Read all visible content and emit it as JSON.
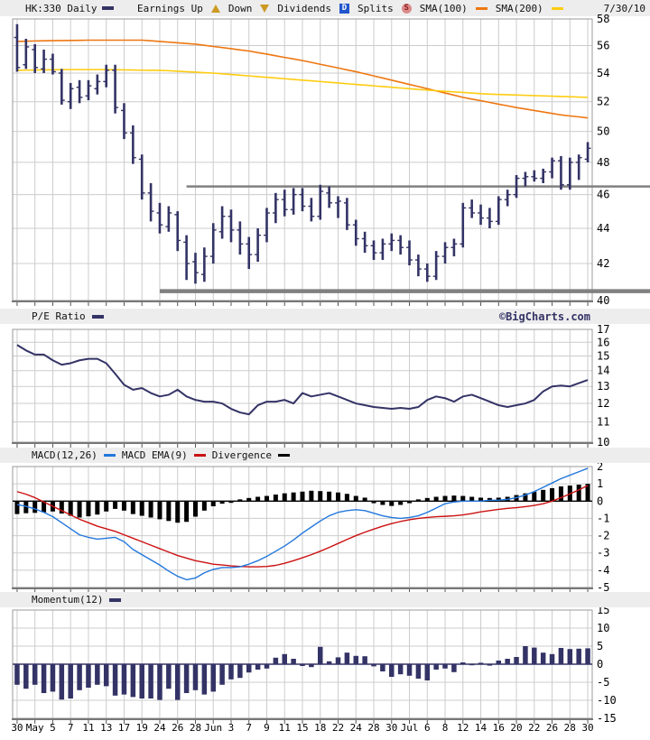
{
  "header": {
    "symbol": "HK:330 Daily",
    "date": "7/30/10",
    "legend": {
      "earnings_up": "Earnings Up",
      "down": "Down",
      "dividends": "Dividends",
      "dividends_icon_letter": "D",
      "splits": "Splits",
      "splits_icon_letter": "S",
      "sma100": "SMA(100)",
      "sma200": "SMA(200)"
    }
  },
  "panels": {
    "pe": {
      "label": "P/E Ratio",
      "branding": "©BigCharts.com"
    },
    "macd": {
      "macd_label": "MACD(12,26)",
      "ema_label": "MACD EMA(9)",
      "divergence_label": "Divergence"
    },
    "momentum": {
      "label": "Momentum(12)"
    }
  },
  "colors": {
    "navy": "#333366",
    "sma100_orange": "#ee7711",
    "sma200_yellow": "#ffcc11",
    "macd_blue": "#2277dd",
    "macd_red": "#cc1111",
    "divergence_black": "#000000",
    "grid": "#cccccc",
    "trendline_gray": "#808080",
    "panel_bar_bg": "#ededed"
  },
  "chart_data": [
    {
      "id": "price",
      "type": "ohlc-bar",
      "title": "HK:330 Daily",
      "scale": "log",
      "ylim": [
        40,
        58
      ],
      "yticks": [
        58,
        56,
        54,
        52,
        50,
        48,
        46,
        44,
        42,
        40
      ],
      "x_labels": [
        "30",
        "May",
        "5",
        "7",
        "11",
        "13",
        "17",
        "19",
        "24",
        "26",
        "28",
        "Jun",
        "3",
        "7",
        "9",
        "11",
        "15",
        "18",
        "22",
        "24",
        "28",
        "30",
        "Jul",
        "6",
        "8",
        "12",
        "14",
        "16",
        "20",
        "22",
        "26",
        "28",
        "30"
      ],
      "bar_color": "#333366",
      "ohlc": [
        [
          56.6,
          57.6,
          54.1,
          54.4
        ],
        [
          54.6,
          56.5,
          54.3,
          55.9
        ],
        [
          55.7,
          56.1,
          54.0,
          54.4
        ],
        [
          54.3,
          55.7,
          54.0,
          55.0
        ],
        [
          55.0,
          55.4,
          53.9,
          54.1
        ],
        [
          54.0,
          54.3,
          51.8,
          52.1
        ],
        [
          52.0,
          53.3,
          51.5,
          52.9
        ],
        [
          53.0,
          53.5,
          51.9,
          52.3
        ],
        [
          52.4,
          53.5,
          52.1,
          53.1
        ],
        [
          52.9,
          53.9,
          52.5,
          53.4
        ],
        [
          53.4,
          54.6,
          53.0,
          54.2
        ],
        [
          54.2,
          54.6,
          51.2,
          51.6
        ],
        [
          51.4,
          51.9,
          49.5,
          49.9
        ],
        [
          49.9,
          50.4,
          47.9,
          48.3
        ],
        [
          48.2,
          48.5,
          45.7,
          46.1
        ],
        [
          46.1,
          46.7,
          44.4,
          45.0
        ],
        [
          44.9,
          45.5,
          43.7,
          44.2
        ],
        [
          44.1,
          45.3,
          43.8,
          44.9
        ],
        [
          44.8,
          45.0,
          42.7,
          43.3
        ],
        [
          43.2,
          43.6,
          41.1,
          42.0
        ],
        [
          42.1,
          42.6,
          40.9,
          41.5
        ],
        [
          41.4,
          42.9,
          41.0,
          42.4
        ],
        [
          42.4,
          44.3,
          42.0,
          43.9
        ],
        [
          43.8,
          45.3,
          43.4,
          44.7
        ],
        [
          44.7,
          45.1,
          43.2,
          43.9
        ],
        [
          43.9,
          44.4,
          42.5,
          43.1
        ],
        [
          43.1,
          43.5,
          41.7,
          42.5
        ],
        [
          42.5,
          44.0,
          42.1,
          43.6
        ],
        [
          43.6,
          45.2,
          43.2,
          44.9
        ],
        [
          44.9,
          46.1,
          44.3,
          45.7
        ],
        [
          45.7,
          46.3,
          44.7,
          45.1
        ],
        [
          45.1,
          46.4,
          44.8,
          46.0
        ],
        [
          46.0,
          46.4,
          45.0,
          45.3
        ],
        [
          45.3,
          45.8,
          44.4,
          44.7
        ],
        [
          44.7,
          46.6,
          44.5,
          46.2
        ],
        [
          46.1,
          46.5,
          45.2,
          45.5
        ],
        [
          45.5,
          45.9,
          44.6,
          45.6
        ],
        [
          45.5,
          45.8,
          43.9,
          44.2
        ],
        [
          44.2,
          44.5,
          43.0,
          43.4
        ],
        [
          43.4,
          43.8,
          42.6,
          43.0
        ],
        [
          43.0,
          43.3,
          42.2,
          42.6
        ],
        [
          42.6,
          43.4,
          42.2,
          43.1
        ],
        [
          43.1,
          43.7,
          42.7,
          43.3
        ],
        [
          43.3,
          43.6,
          42.5,
          42.9
        ],
        [
          42.9,
          43.3,
          41.9,
          42.2
        ],
        [
          42.2,
          42.5,
          41.3,
          41.7
        ],
        [
          41.7,
          42.0,
          41.0,
          41.3
        ],
        [
          41.3,
          42.7,
          41.1,
          42.4
        ],
        [
          42.4,
          43.2,
          42.0,
          42.9
        ],
        [
          42.9,
          43.4,
          42.4,
          43.1
        ],
        [
          43.1,
          45.5,
          42.9,
          45.2
        ],
        [
          45.2,
          45.7,
          44.6,
          44.9
        ],
        [
          44.9,
          45.4,
          44.2,
          44.6
        ],
        [
          44.6,
          45.2,
          44.0,
          44.4
        ],
        [
          44.4,
          45.9,
          44.2,
          45.7
        ],
        [
          45.7,
          46.3,
          45.3,
          46.0
        ],
        [
          46.0,
          47.2,
          45.8,
          47.0
        ],
        [
          47.0,
          47.4,
          46.5,
          47.1
        ],
        [
          47.1,
          47.5,
          46.8,
          47.0
        ],
        [
          47.0,
          47.6,
          46.7,
          47.4
        ],
        [
          47.4,
          48.3,
          47.0,
          48.1
        ],
        [
          48.1,
          48.4,
          46.3,
          46.6
        ],
        [
          46.6,
          48.3,
          46.3,
          48.0
        ],
        [
          48.0,
          48.5,
          46.9,
          48.3
        ],
        [
          48.2,
          49.3,
          48.0,
          48.9
        ]
      ],
      "overlays": [
        {
          "name": "SMA(100)",
          "color": "#ee7711",
          "values": [
            56.3,
            56.32,
            56.34,
            56.35,
            56.36,
            56.37,
            56.38,
            56.39,
            56.4,
            56.4,
            56.4,
            56.4,
            56.4,
            56.4,
            56.4,
            56.35,
            56.3,
            56.25,
            56.2,
            56.15,
            56.1,
            56.02,
            55.93,
            55.85,
            55.77,
            55.68,
            55.6,
            55.48,
            55.37,
            55.25,
            55.13,
            55.02,
            54.9,
            54.77,
            54.63,
            54.5,
            54.37,
            54.23,
            54.1,
            53.95,
            53.8,
            53.65,
            53.5,
            53.35,
            53.2,
            53.05,
            52.9,
            52.75,
            52.6,
            52.45,
            52.3,
            52.18,
            52.07,
            51.95,
            51.83,
            51.72,
            51.6,
            51.5,
            51.4,
            51.3,
            51.2,
            51.1,
            51.03,
            50.97,
            50.9
          ]
        },
        {
          "name": "SMA(200)",
          "color": "#ffcc11",
          "values": [
            54.2,
            54.21,
            54.22,
            54.23,
            54.24,
            54.25,
            54.25,
            54.25,
            54.25,
            54.25,
            54.25,
            54.24,
            54.23,
            54.22,
            54.21,
            54.2,
            54.2,
            54.17,
            54.13,
            54.1,
            54.07,
            54.03,
            54.0,
            53.95,
            53.9,
            53.85,
            53.8,
            53.75,
            53.7,
            53.65,
            53.6,
            53.55,
            53.5,
            53.45,
            53.4,
            53.35,
            53.3,
            53.25,
            53.2,
            53.15,
            53.1,
            53.05,
            53.0,
            52.95,
            52.9,
            52.85,
            52.8,
            52.76,
            52.72,
            52.68,
            52.64,
            52.6,
            52.55,
            52.52,
            52.5,
            52.48,
            52.46,
            52.44,
            52.42,
            52.4,
            52.38,
            52.36,
            52.34,
            52.32,
            52.3
          ]
        }
      ],
      "trendlines": [
        {
          "name": "resistance",
          "value": 46.5,
          "from_index": 19,
          "color": "#808080",
          "stroke_width": 2.5
        },
        {
          "name": "support",
          "value": 40.5,
          "from_index": 16,
          "color": "#808080",
          "stroke_width": 4.5
        }
      ]
    },
    {
      "id": "pe",
      "type": "line",
      "title": "P/E Ratio",
      "scale": "log",
      "ylim": [
        10,
        17
      ],
      "yticks": [
        17,
        16,
        15,
        14,
        13,
        12,
        11,
        10
      ],
      "line_color": "#333366",
      "values": [
        15.8,
        15.4,
        15.1,
        15.1,
        14.7,
        14.4,
        14.5,
        14.7,
        14.8,
        14.8,
        14.5,
        13.8,
        13.1,
        12.8,
        12.9,
        12.6,
        12.4,
        12.5,
        12.8,
        12.4,
        12.2,
        12.1,
        12.1,
        12.0,
        11.7,
        11.5,
        11.4,
        11.9,
        12.1,
        12.1,
        12.2,
        12.0,
        12.6,
        12.4,
        12.5,
        12.6,
        12.4,
        12.2,
        12.0,
        11.9,
        11.8,
        11.75,
        11.7,
        11.75,
        11.7,
        11.8,
        12.2,
        12.4,
        12.3,
        12.1,
        12.4,
        12.5,
        12.3,
        12.1,
        11.9,
        11.8,
        11.9,
        12.0,
        12.2,
        12.7,
        13.0,
        13.05,
        13.0,
        13.2,
        13.4
      ]
    },
    {
      "id": "macd",
      "type": "macd",
      "title": "MACD(12,26)",
      "scale": "linear",
      "ylim": [
        -5,
        2
      ],
      "yticks": [
        2,
        1,
        0,
        -1,
        -2,
        -3,
        -4,
        -5
      ],
      "zero_line_color": "#000000",
      "series": [
        {
          "name": "Divergence",
          "style": "histogram",
          "color": "#000000",
          "values": [
            -0.75,
            -0.7,
            -0.68,
            -0.65,
            -0.6,
            -0.72,
            -0.85,
            -0.95,
            -0.88,
            -0.78,
            -0.6,
            -0.45,
            -0.55,
            -0.75,
            -0.85,
            -0.95,
            -1.05,
            -1.15,
            -1.25,
            -1.2,
            -0.9,
            -0.55,
            -0.3,
            -0.15,
            -0.1,
            0.1,
            0.18,
            0.25,
            0.3,
            0.38,
            0.45,
            0.5,
            0.55,
            0.6,
            0.58,
            0.55,
            0.5,
            0.42,
            0.3,
            0.2,
            -0.12,
            -0.22,
            -0.28,
            -0.22,
            -0.12,
            0.1,
            0.18,
            0.25,
            0.3,
            0.32,
            0.3,
            0.25,
            0.2,
            0.18,
            0.2,
            0.25,
            0.35,
            0.45,
            0.55,
            0.65,
            0.75,
            0.85,
            0.9,
            0.95,
            1.0
          ]
        },
        {
          "name": "MACD EMA(9)",
          "style": "line",
          "color": "#cc1111",
          "values": [
            0.55,
            0.4,
            0.2,
            -0.05,
            -0.3,
            -0.55,
            -0.8,
            -1.05,
            -1.25,
            -1.45,
            -1.6,
            -1.75,
            -1.95,
            -2.15,
            -2.35,
            -2.55,
            -2.75,
            -2.95,
            -3.15,
            -3.3,
            -3.45,
            -3.55,
            -3.65,
            -3.7,
            -3.75,
            -3.78,
            -3.8,
            -3.8,
            -3.78,
            -3.72,
            -3.6,
            -3.45,
            -3.28,
            -3.1,
            -2.9,
            -2.68,
            -2.45,
            -2.22,
            -2.0,
            -1.8,
            -1.62,
            -1.45,
            -1.3,
            -1.18,
            -1.08,
            -1.0,
            -0.95,
            -0.9,
            -0.88,
            -0.85,
            -0.8,
            -0.72,
            -0.62,
            -0.55,
            -0.48,
            -0.42,
            -0.38,
            -0.32,
            -0.25,
            -0.15,
            0.0,
            0.2,
            0.42,
            0.65,
            0.9
          ]
        },
        {
          "name": "MACD(12,26)",
          "style": "line",
          "color": "#2277dd",
          "values": [
            -0.2,
            -0.3,
            -0.45,
            -0.65,
            -0.9,
            -1.25,
            -1.6,
            -1.95,
            -2.1,
            -2.2,
            -2.15,
            -2.1,
            -2.35,
            -2.8,
            -3.1,
            -3.4,
            -3.7,
            -4.05,
            -4.35,
            -4.55,
            -4.45,
            -4.15,
            -3.95,
            -3.85,
            -3.85,
            -3.8,
            -3.65,
            -3.45,
            -3.2,
            -2.9,
            -2.6,
            -2.25,
            -1.85,
            -1.5,
            -1.15,
            -0.85,
            -0.65,
            -0.55,
            -0.5,
            -0.55,
            -0.7,
            -0.85,
            -0.95,
            -1.0,
            -0.95,
            -0.85,
            -0.65,
            -0.4,
            -0.15,
            -0.05,
            0.0,
            0.0,
            0.0,
            0.05,
            0.05,
            0.1,
            0.2,
            0.35,
            0.55,
            0.8,
            1.05,
            1.3,
            1.5,
            1.7,
            1.9
          ]
        }
      ]
    },
    {
      "id": "momentum",
      "type": "bar",
      "title": "Momentum(12)",
      "scale": "linear",
      "ylim": [
        -15,
        15
      ],
      "yticks": [
        15,
        10,
        5,
        0,
        -5,
        -10,
        -15
      ],
      "zero_line_color": "#333366",
      "bar_color": "#333366",
      "values": [
        -5.7,
        -6.8,
        -5.7,
        -8.0,
        -7.6,
        -9.8,
        -9.5,
        -7.2,
        -6.5,
        -5.7,
        -6.1,
        -8.7,
        -8.4,
        -9.1,
        -9.5,
        -9.5,
        -9.9,
        -6.8,
        -9.9,
        -8.0,
        -7.2,
        -8.4,
        -7.6,
        -5.7,
        -4.2,
        -3.8,
        -2.3,
        -1.5,
        -1.2,
        1.8,
        2.8,
        1.5,
        -0.5,
        -0.8,
        4.8,
        0.8,
        1.9,
        3.2,
        2.3,
        2.2,
        -0.6,
        -2.0,
        -3.5,
        -2.8,
        -3.2,
        -4.0,
        -4.5,
        -1.5,
        -1.2,
        -2.2,
        0.5,
        -0.3,
        0.4,
        -0.4,
        1.0,
        1.5,
        2.0,
        5.0,
        4.6,
        3.2,
        2.8,
        4.5,
        4.2,
        4.3,
        4.4
      ]
    }
  ]
}
